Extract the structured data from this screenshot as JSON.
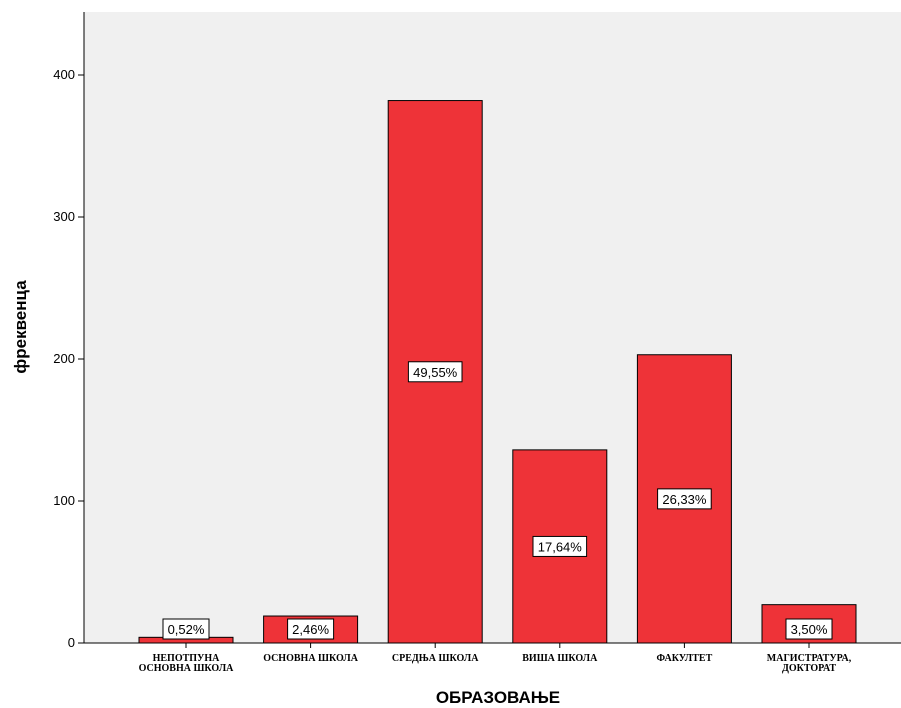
{
  "chart_data": {
    "type": "bar",
    "xlabel": "ОБРАЗОВАЊЕ",
    "ylabel": "фреквенца",
    "ylim": [
      0,
      450
    ],
    "yticks": [
      0,
      100,
      200,
      300,
      400
    ],
    "grid": false,
    "categories": [
      [
        "НЕПОТПУНА",
        "ОСНОВНА ШКОЛА"
      ],
      [
        "ОСНОВНА ШКОЛА"
      ],
      [
        "СРЕДЊА ШКОЛА"
      ],
      [
        "ВИША ШКОЛА"
      ],
      [
        "ФАКУЛТЕТ"
      ],
      [
        "МАГИСТРАТУРА,",
        "ДОКТОРАТ"
      ]
    ],
    "values": [
      4,
      19,
      382,
      136,
      203,
      27
    ],
    "data_labels": [
      "0,52%",
      "2,46%",
      "49,55%",
      "17,64%",
      "26,33%",
      "3,50%"
    ],
    "colors": {
      "bar": "#ee3338",
      "plot_bg": "#f0f0f0"
    }
  }
}
